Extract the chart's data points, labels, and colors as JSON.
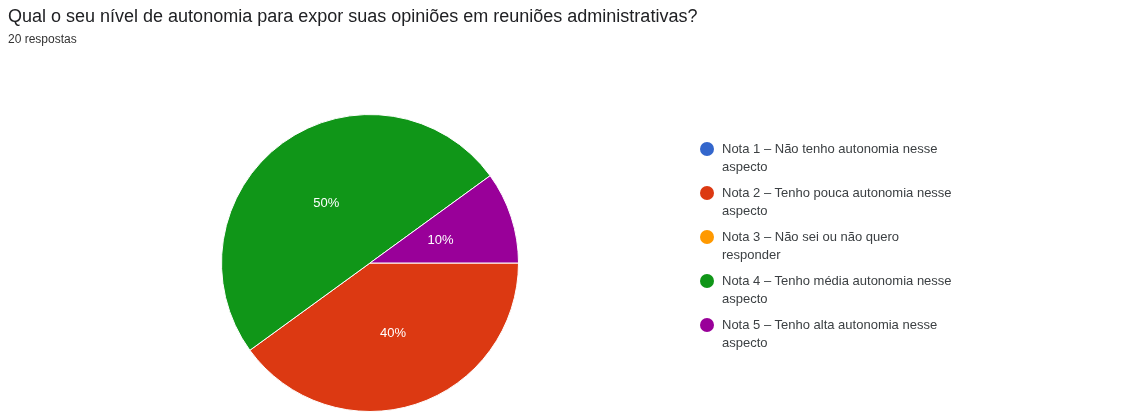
{
  "chart_data": {
    "type": "pie",
    "title": "Qual o seu nível de autonomia para expor suas opiniões em reuniões administrativas?",
    "subtitle": "20 respostas",
    "categories": [
      "Nota 1 – Não tenho autonomia nesse aspecto",
      "Nota 2 – Tenho pouca autonomia nesse aspecto",
      "Nota 3 – Não sei ou não quero responder",
      "Nota 4 – Tenho média autonomia nesse aspecto",
      "Nota 5 – Tenho alta autonomia nesse aspecto"
    ],
    "values": [
      0,
      40,
      0,
      50,
      10
    ],
    "colors": [
      "#3366cc",
      "#dc3912",
      "#ff9900",
      "#109618",
      "#990099"
    ],
    "value_labels": [
      null,
      "40%",
      null,
      "50%",
      "10%"
    ],
    "legend": "right"
  }
}
